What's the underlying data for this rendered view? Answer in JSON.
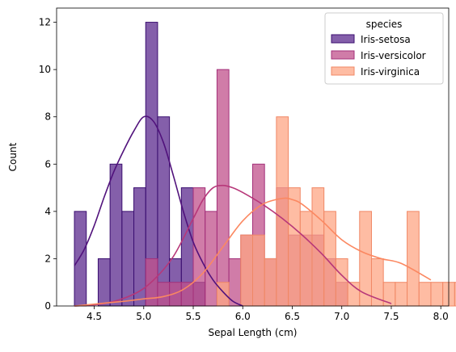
{
  "chart_data": {
    "type": "histogram",
    "xlabel": "Sepal Length (cm)",
    "ylabel": "Count",
    "xlim": [
      4.12,
      8.08
    ],
    "ylim": [
      0,
      12.6
    ],
    "xticks": [
      4.5,
      5.0,
      5.5,
      6.0,
      6.5,
      7.0,
      7.5,
      8.0
    ],
    "xtick_labels": [
      "4.5",
      "5.0",
      "5.5",
      "6.0",
      "6.5",
      "7.0",
      "7.5",
      "8.0"
    ],
    "yticks": [
      0,
      2,
      4,
      6,
      8,
      10,
      12
    ],
    "ytick_labels": [
      "0",
      "2",
      "4",
      "6",
      "8",
      "10",
      "12"
    ],
    "bin_start": 4.3,
    "bin_width": 0.12,
    "legend": {
      "title": "species",
      "position": "upper right"
    },
    "series": [
      {
        "name": "Iris-setosa",
        "fill": "#5b2a8e",
        "edge": "#3b0f70",
        "line": "#51127c",
        "counts": [
          4,
          0,
          2,
          6,
          4,
          5,
          12,
          8,
          2,
          5,
          1,
          0,
          0,
          0,
          0,
          0,
          0,
          0,
          0,
          0,
          0,
          0,
          0,
          0,
          0,
          0,
          0,
          0,
          0,
          0,
          0,
          0,
          0
        ],
        "kde_x": [
          4.3,
          4.4,
          4.5,
          4.6,
          4.7,
          4.8,
          4.9,
          5.0,
          5.1,
          5.2,
          5.3,
          5.4,
          5.5,
          5.6,
          5.7,
          5.8,
          5.9,
          6.0
        ],
        "kde_y": [
          1.7,
          2.4,
          3.4,
          4.6,
          5.7,
          6.6,
          7.4,
          8.0,
          7.8,
          6.9,
          5.5,
          4.0,
          2.7,
          1.8,
          1.1,
          0.6,
          0.2,
          0.0
        ]
      },
      {
        "name": "Iris-versicolor",
        "fill": "#c0508b",
        "edge": "#a3307a",
        "line": "#b73779",
        "counts": [
          0,
          0,
          0,
          0,
          0,
          0,
          2,
          1,
          1,
          1,
          5,
          4,
          10,
          2,
          3,
          6,
          2,
          5,
          3,
          3,
          3,
          2,
          1,
          0,
          0,
          0,
          0,
          0,
          0,
          0,
          0,
          0,
          0
        ],
        "kde_x": [
          4.3,
          4.6,
          4.9,
          5.1,
          5.3,
          5.5,
          5.6,
          5.7,
          5.8,
          5.9,
          6.0,
          6.2,
          6.4,
          6.6,
          6.8,
          7.0,
          7.2,
          7.5
        ],
        "kde_y": [
          0.0,
          0.1,
          0.5,
          1.1,
          2.1,
          3.7,
          4.5,
          5.0,
          5.1,
          5.0,
          4.8,
          4.3,
          3.7,
          3.0,
          2.2,
          1.3,
          0.6,
          0.1
        ]
      },
      {
        "name": "Iris-virginica",
        "fill": "#fea584",
        "edge": "#f08866",
        "line": "#fb8861",
        "counts": [
          0,
          0,
          0,
          0,
          0,
          0,
          0,
          0,
          0,
          0,
          0,
          0,
          1,
          0,
          3,
          3,
          2,
          8,
          5,
          4,
          5,
          4,
          2,
          1,
          4,
          2,
          1,
          1,
          4,
          1,
          1,
          1,
          1
        ],
        "kde_x": [
          4.3,
          4.8,
          5.0,
          5.2,
          5.4,
          5.6,
          5.8,
          6.0,
          6.2,
          6.4,
          6.5,
          6.6,
          6.8,
          7.0,
          7.2,
          7.4,
          7.6,
          7.9
        ],
        "kde_y": [
          0.0,
          0.2,
          0.3,
          0.4,
          0.7,
          1.4,
          2.5,
          3.6,
          4.3,
          4.55,
          4.5,
          4.3,
          3.6,
          2.8,
          2.3,
          2.0,
          1.8,
          1.1
        ]
      }
    ]
  }
}
